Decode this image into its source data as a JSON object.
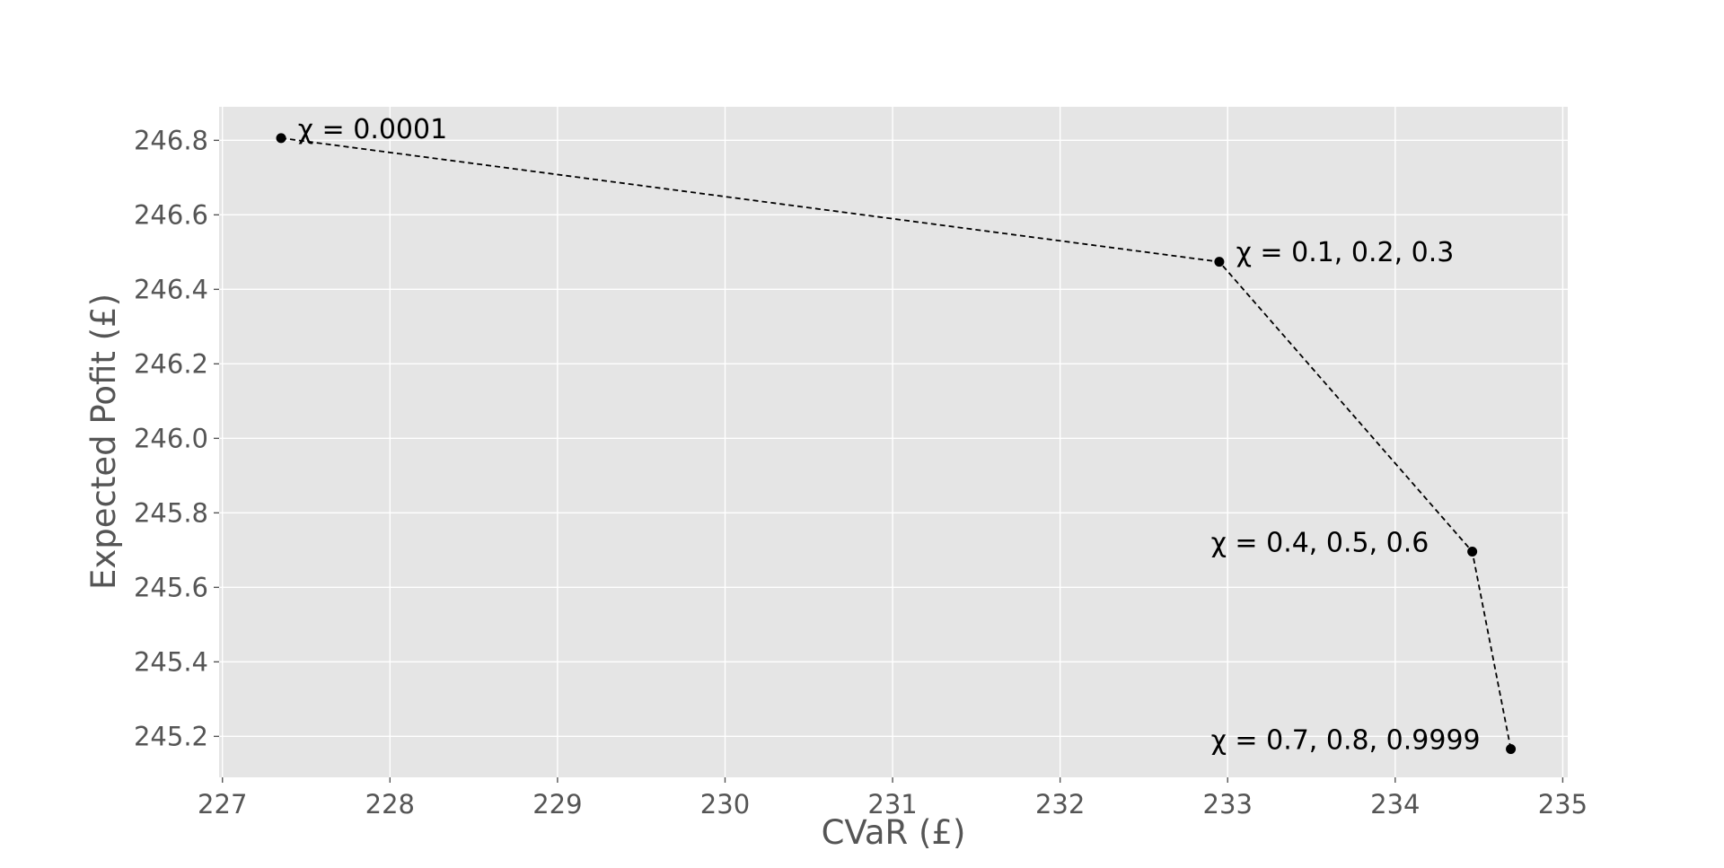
{
  "chart_data": {
    "type": "line",
    "title": "",
    "xlabel": "CVaR (£)",
    "ylabel": "Expected Pofit (£)",
    "xlim": [
      226.98,
      235.03
    ],
    "ylim": [
      245.09,
      246.89
    ],
    "xticks": [
      227,
      228,
      229,
      230,
      231,
      232,
      233,
      234,
      235
    ],
    "yticks": [
      245.2,
      245.4,
      245.6,
      245.8,
      246.0,
      246.2,
      246.4,
      246.6,
      246.8
    ],
    "grid": true,
    "legend": "none",
    "colors": {
      "plot_background": "#e5e5e5",
      "grid": "#ffffff",
      "line": "#000000",
      "tick_text": "#555555"
    },
    "series": [
      {
        "x": [
          227.35,
          232.95,
          234.46,
          234.69
        ],
        "y": [
          246.806,
          246.474,
          245.696,
          245.166
        ],
        "line_style": "dashed",
        "marker": "circle"
      }
    ],
    "annotations": [
      {
        "text": "χ = 0.0001",
        "x": 227.45,
        "y": 246.83,
        "anchor": "start"
      },
      {
        "text": "χ = 0.1, 0.2, 0.3",
        "x": 233.05,
        "y": 246.5,
        "anchor": "start"
      },
      {
        "text": "χ = 0.4, 0.5, 0.6",
        "x": 232.9,
        "y": 245.72,
        "anchor": "start"
      },
      {
        "text": "χ = 0.7, 0.8, 0.9999",
        "x": 232.9,
        "y": 245.19,
        "anchor": "start"
      }
    ]
  }
}
